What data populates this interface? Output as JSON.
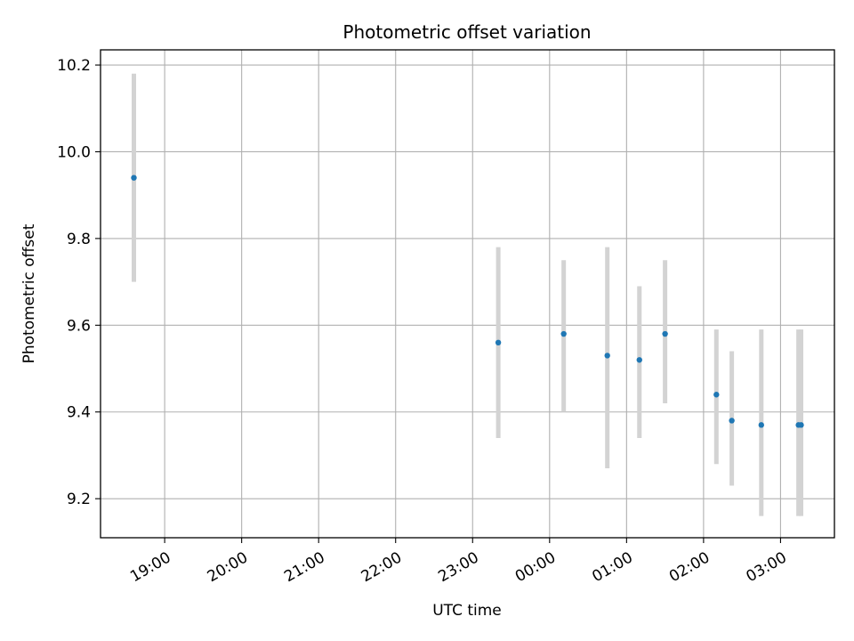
{
  "chart_data": {
    "type": "scatter",
    "title": "Photometric offset variation",
    "xlabel": "UTC time",
    "ylabel": "Photometric offset",
    "grid": true,
    "legend": "none",
    "colors": {
      "point": "#1f77b4",
      "errorbar": "#d3d3d3",
      "grid": "#b0b0b0",
      "axis": "#000000"
    },
    "x_ticks": [
      "19:00",
      "20:00",
      "21:00",
      "22:00",
      "23:00",
      "00:00",
      "01:00",
      "02:00",
      "03:00"
    ],
    "xlim": [
      "18:10",
      "03:42"
    ],
    "ylim": [
      9.11,
      10.235
    ],
    "y_ticks": [
      9.2,
      9.4,
      9.6,
      9.8,
      10.0,
      10.2
    ],
    "y_tick_labels": [
      "9.2",
      "9.4",
      "9.6",
      "9.8",
      "10.0",
      "10.2"
    ],
    "points": [
      {
        "x": "18:36",
        "y": 9.94,
        "yerr_low": 9.7,
        "yerr_high": 10.18
      },
      {
        "x": "23:20",
        "y": 9.56,
        "yerr_low": 9.34,
        "yerr_high": 9.78
      },
      {
        "x": "00:11",
        "y": 9.58,
        "yerr_low": 9.4,
        "yerr_high": 9.75
      },
      {
        "x": "00:45",
        "y": 9.53,
        "yerr_low": 9.27,
        "yerr_high": 9.78
      },
      {
        "x": "01:10",
        "y": 9.52,
        "yerr_low": 9.34,
        "yerr_high": 9.69
      },
      {
        "x": "01:30",
        "y": 9.58,
        "yerr_low": 9.42,
        "yerr_high": 9.75
      },
      {
        "x": "02:10",
        "y": 9.44,
        "yerr_low": 9.28,
        "yerr_high": 9.59
      },
      {
        "x": "02:22",
        "y": 9.38,
        "yerr_low": 9.23,
        "yerr_high": 9.54
      },
      {
        "x": "02:45",
        "y": 9.37,
        "yerr_low": 9.16,
        "yerr_high": 9.59
      },
      {
        "x": "03:14",
        "y": 9.37,
        "yerr_low": 9.16,
        "yerr_high": 9.59
      },
      {
        "x": "03:16",
        "y": 9.37,
        "yerr_low": 9.16,
        "yerr_high": 9.59
      }
    ]
  }
}
